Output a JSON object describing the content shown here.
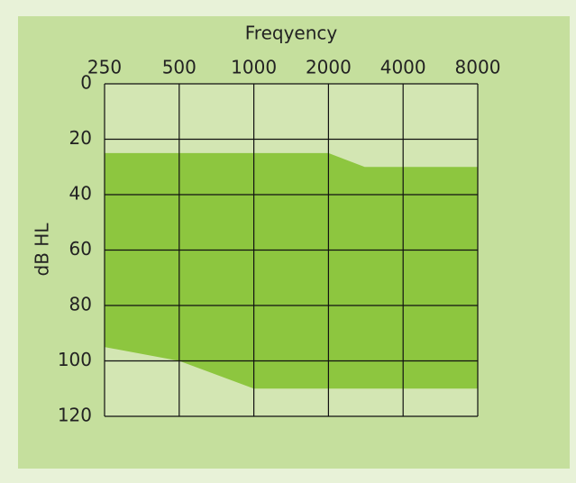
{
  "chart_data": {
    "type": "area",
    "title": "Freqyency",
    "ylabel": "dB HL",
    "xscale": "log",
    "xticks": [
      250,
      500,
      1000,
      2000,
      4000,
      8000
    ],
    "xlim": [
      250,
      8000
    ],
    "ylim": [
      0,
      120
    ],
    "yinverted": true,
    "yticks": [
      0,
      20,
      40,
      60,
      80,
      100,
      120
    ],
    "grid": true,
    "color": "#8dc63f",
    "upper": {
      "x": [
        250,
        500,
        1000,
        2000,
        2800,
        8000
      ],
      "values": [
        25,
        25,
        25,
        25,
        30,
        30
      ]
    },
    "lower": {
      "x": [
        250,
        500,
        1000,
        8000
      ],
      "values": [
        95,
        100,
        110,
        110
      ]
    }
  }
}
